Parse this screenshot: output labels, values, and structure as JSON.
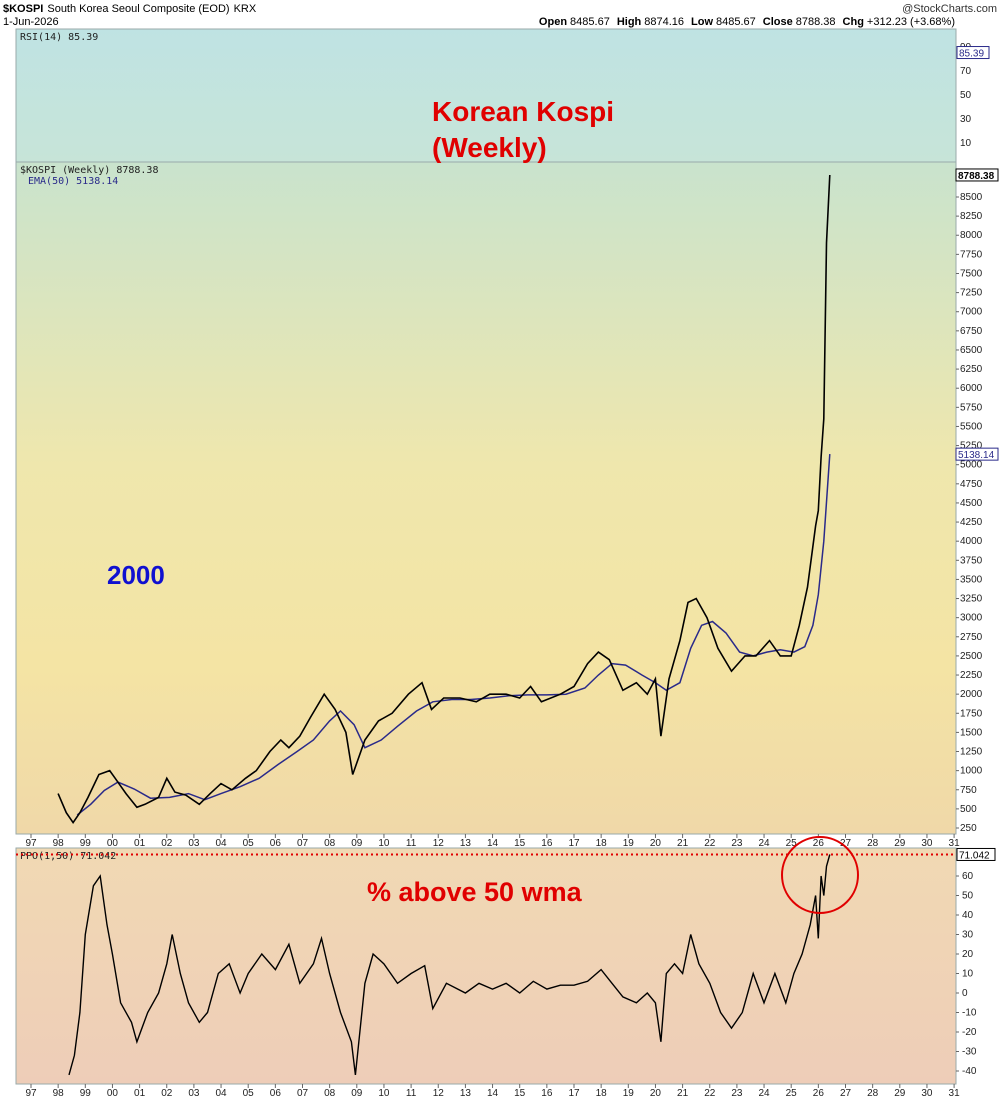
{
  "header": {
    "symbol": "$KOSPI",
    "description": "South Korea Seoul Composite (EOD)",
    "exchange": "KRX",
    "date": "1-Jun-2026",
    "watermark": "@StockCharts.com",
    "open_label": "Open",
    "open": "8485.67",
    "high_label": "High",
    "high": "8874.16",
    "low_label": "Low",
    "low": "8485.67",
    "close_label": "Close",
    "close": "8788.38",
    "chg_label": "Chg",
    "chg": "+312.23 (+3.68%)"
  },
  "annotations": {
    "title_line1": "Korean Kospi",
    "title_line2": "(Weekly)",
    "year_note": "2000",
    "ppo_note": "% above 50 wma"
  },
  "colors": {
    "price_line": "#000000",
    "down_weeks": "#cc0000",
    "ema": "#2a2a8a",
    "annotation_red": "#e00000",
    "annotation_blue": "#1010d0",
    "rsi_bg_top": "#bfe3e3",
    "price_bg_top": "#c9e3cd",
    "price_bg_mid": "#f1e6a8",
    "price_bg_bottom": "#f0d8a8",
    "ppo_bg": "#f0d0b5"
  },
  "chart_data": [
    {
      "type": "line",
      "panel": "rsi",
      "legend": "RSI(14) 85.39",
      "last_value_label": "85.39",
      "last_value": 85.39,
      "ylim": [
        0,
        100
      ],
      "y_ticks": [
        10,
        30,
        50,
        70,
        90
      ],
      "series": []
    },
    {
      "type": "line",
      "panel": "price",
      "legend_price": "$KOSPI (Weekly) 8788.38",
      "legend_ema": "EMA(50) 5138.14",
      "last_price_label": "8788.38",
      "last_ema_label": "5138.14",
      "ylim": [
        200,
        9100
      ],
      "y_ticks": [
        250,
        500,
        750,
        1000,
        1250,
        1500,
        1750,
        2000,
        2250,
        2500,
        2750,
        3000,
        3250,
        3500,
        3750,
        4000,
        4250,
        4500,
        4750,
        5000,
        5250,
        5500,
        5750,
        6000,
        6250,
        6500,
        6750,
        7000,
        7250,
        7500,
        7750,
        8000,
        8250,
        8500
      ],
      "x_tick_labels": [
        "97",
        "98",
        "99",
        "00",
        "01",
        "02",
        "03",
        "04",
        "05",
        "06",
        "07",
        "08",
        "09",
        "10",
        "11",
        "12",
        "13",
        "14",
        "15",
        "16",
        "17",
        "18",
        "19",
        "20",
        "21",
        "22",
        "23",
        "24",
        "25",
        "26",
        "27",
        "28",
        "29",
        "30",
        "31"
      ],
      "series": [
        {
          "x": [
            1998.0,
            1998.3,
            1998.55,
            1998.8,
            1999.1,
            1999.5,
            1999.9,
            2000.1,
            2000.5,
            2000.9,
            2001.2,
            2001.7,
            2002.0,
            2002.3,
            2002.7,
            2003.2,
            2003.6,
            2004.0,
            2004.4,
            2004.9,
            2005.3,
            2005.8,
            2006.2,
            2006.5,
            2006.9,
            2007.3,
            2007.8,
            2008.2,
            2008.6,
            2008.85,
            2009.3,
            2009.8,
            2010.3,
            2010.9,
            2011.4,
            2011.75,
            2012.2,
            2012.8,
            2013.4,
            2013.9,
            2014.5,
            2015.0,
            2015.4,
            2015.8,
            2016.5,
            2017.0,
            2017.5,
            2017.9,
            2018.3,
            2018.8,
            2019.3,
            2019.7,
            2020.0,
            2020.2,
            2020.5,
            2020.9,
            2021.2,
            2021.5,
            2021.9,
            2022.3,
            2022.8,
            2023.3,
            2023.7,
            2024.2,
            2024.6,
            2025.0,
            2025.3,
            2025.6,
            2025.9,
            2026.0,
            2026.1,
            2026.2,
            2026.3,
            2026.42
          ],
          "y": [
            700,
            450,
            320,
            450,
            650,
            950,
            1000,
            900,
            700,
            520,
            560,
            650,
            900,
            720,
            680,
            560,
            700,
            830,
            750,
            900,
            1000,
            1250,
            1400,
            1300,
            1450,
            1700,
            2000,
            1800,
            1500,
            950,
            1400,
            1650,
            1750,
            2000,
            2150,
            1800,
            1950,
            1950,
            1900,
            2000,
            2000,
            1950,
            2100,
            1900,
            2000,
            2100,
            2400,
            2550,
            2450,
            2050,
            2150,
            2000,
            2200,
            1450,
            2200,
            2700,
            3200,
            3250,
            3000,
            2600,
            2300,
            2500,
            2500,
            2700,
            2500,
            2500,
            2900,
            3400,
            4200,
            4400,
            5100,
            5600,
            7900,
            8788
          ]
        },
        {
          "name": "EMA(50)",
          "x": [
            1998.7,
            1999.2,
            1999.7,
            2000.2,
            2000.8,
            2001.4,
            2002.1,
            2002.8,
            2003.4,
            2004.0,
            2004.7,
            2005.4,
            2006.1,
            2006.8,
            2007.4,
            2008.0,
            2008.4,
            2008.9,
            2009.3,
            2009.9,
            2010.5,
            2011.2,
            2011.8,
            2012.5,
            2013.2,
            2013.9,
            2014.6,
            2015.3,
            2016.0,
            2016.7,
            2017.4,
            2017.9,
            2018.4,
            2018.9,
            2019.5,
            2020.0,
            2020.4,
            2020.9,
            2021.3,
            2021.7,
            2022.1,
            2022.6,
            2023.1,
            2023.6,
            2024.1,
            2024.6,
            2025.1,
            2025.5,
            2025.8,
            2026.0,
            2026.2,
            2026.42
          ],
          "y": [
            420,
            560,
            740,
            850,
            760,
            640,
            650,
            700,
            620,
            700,
            790,
            900,
            1080,
            1250,
            1400,
            1650,
            1780,
            1600,
            1300,
            1400,
            1580,
            1780,
            1900,
            1930,
            1930,
            1950,
            1980,
            1990,
            1990,
            2000,
            2080,
            2250,
            2400,
            2380,
            2250,
            2150,
            2050,
            2150,
            2600,
            2900,
            2950,
            2800,
            2550,
            2500,
            2550,
            2580,
            2550,
            2620,
            2900,
            3300,
            4000,
            5138
          ]
        }
      ]
    },
    {
      "type": "line",
      "panel": "ppo",
      "legend": "PPO(1,50) 71.042",
      "last_value_label": "71.042",
      "last_value": 71.042,
      "ylim": [
        -45,
        75
      ],
      "y_ticks": [
        -40,
        -30,
        -20,
        -10,
        0,
        10,
        20,
        30,
        40,
        50,
        60
      ],
      "x_tick_labels": [
        "97",
        "98",
        "99",
        "00",
        "01",
        "02",
        "03",
        "04",
        "05",
        "06",
        "07",
        "08",
        "09",
        "10",
        "11",
        "12",
        "13",
        "14",
        "15",
        "16",
        "17",
        "18",
        "19",
        "20",
        "21",
        "22",
        "23",
        "24",
        "25",
        "26",
        "27",
        "28",
        "29",
        "30",
        "31"
      ],
      "series": [
        {
          "x": [
            1998.4,
            1998.6,
            1998.8,
            1999.0,
            1999.3,
            1999.55,
            1999.8,
            2000.0,
            2000.3,
            2000.7,
            2000.9,
            2001.3,
            2001.7,
            2002.0,
            2002.2,
            2002.5,
            2002.8,
            2003.2,
            2003.5,
            2003.9,
            2004.3,
            2004.7,
            2005.0,
            2005.5,
            2006.0,
            2006.5,
            2006.9,
            2007.4,
            2007.7,
            2008.0,
            2008.4,
            2008.8,
            2008.95,
            2009.3,
            2009.6,
            2010.0,
            2010.5,
            2011.0,
            2011.5,
            2011.8,
            2012.3,
            2013.0,
            2013.5,
            2014.0,
            2014.5,
            2015.0,
            2015.5,
            2016.0,
            2016.5,
            2017.0,
            2017.5,
            2018.0,
            2018.4,
            2018.8,
            2019.3,
            2019.7,
            2020.0,
            2020.2,
            2020.4,
            2020.7,
            2021.0,
            2021.3,
            2021.6,
            2022.0,
            2022.4,
            2022.8,
            2023.2,
            2023.6,
            2024.0,
            2024.4,
            2024.8,
            2025.1,
            2025.4,
            2025.7,
            2025.9,
            2026.0,
            2026.1,
            2026.2,
            2026.3,
            2026.42
          ],
          "y": [
            -42,
            -32,
            -10,
            30,
            55,
            60,
            35,
            20,
            -5,
            -15,
            -25,
            -10,
            0,
            15,
            30,
            10,
            -5,
            -15,
            -10,
            10,
            15,
            0,
            10,
            20,
            12,
            25,
            5,
            15,
            28,
            10,
            -10,
            -25,
            -42,
            5,
            20,
            15,
            5,
            10,
            14,
            -8,
            5,
            0,
            5,
            2,
            5,
            0,
            6,
            2,
            4,
            4,
            6,
            12,
            5,
            -2,
            -5,
            0,
            -5,
            -25,
            10,
            15,
            10,
            30,
            15,
            5,
            -10,
            -18,
            -10,
            10,
            -5,
            10,
            -5,
            10,
            20,
            35,
            50,
            28,
            60,
            50,
            65,
            71
          ]
        }
      ]
    }
  ]
}
